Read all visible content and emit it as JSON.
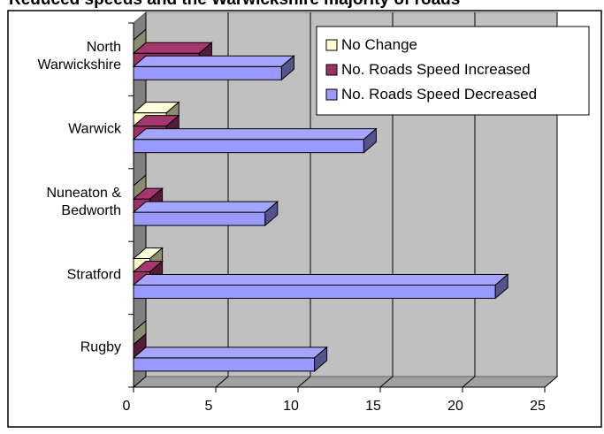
{
  "chart_data": {
    "type": "bar",
    "orientation": "horizontal",
    "style": "3d-stacked",
    "title": "Reduced speeds and the Warwickshire majority of roads",
    "categories": [
      "North Warwickshire",
      "Warwick",
      "Nuneaton & Bedworth",
      "Stratford",
      "Rugby"
    ],
    "category_label_lines": [
      [
        "North",
        "Warwickshire"
      ],
      [
        "Warwick"
      ],
      [
        "Nuneaton &",
        "Bedworth"
      ],
      [
        "Stratford"
      ],
      [
        "Rugby"
      ]
    ],
    "series": [
      {
        "name": "No Change",
        "values": [
          0,
          2,
          0,
          1,
          0
        ],
        "color": "#ffffcc"
      },
      {
        "name": "No. Roads Speed Increased",
        "values": [
          4,
          2,
          1,
          1,
          0
        ],
        "color": "#993366"
      },
      {
        "name": "No. Roads Speed Decreased",
        "values": [
          9,
          14,
          8,
          22,
          11
        ],
        "color": "#9999ff"
      }
    ],
    "xlim": [
      0,
      25
    ],
    "xticks": [
      "0",
      "5",
      "10",
      "15",
      "20",
      "25"
    ],
    "grid": true,
    "legend_position": "top-right"
  }
}
